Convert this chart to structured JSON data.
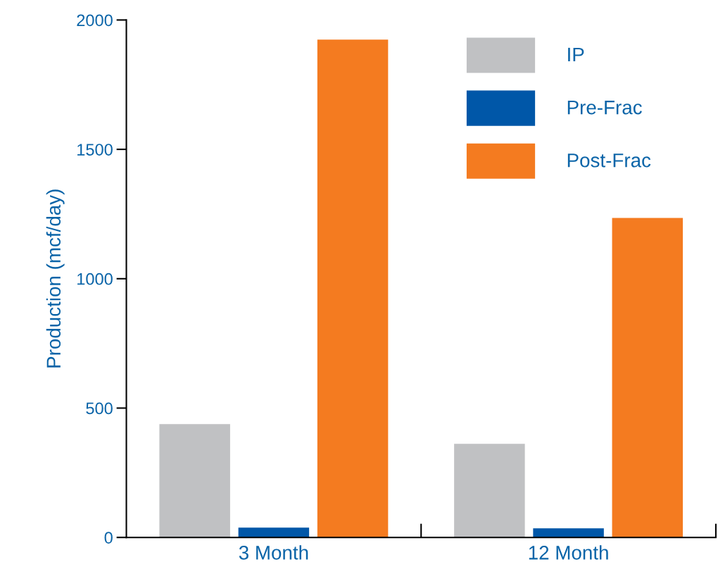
{
  "chart_data": {
    "type": "bar",
    "ylabel": "Production (mcf/day)",
    "categories": [
      "3 Month",
      "12 Month"
    ],
    "series": [
      {
        "name": "IP",
        "color": "#c0c1c3",
        "values": [
          438,
          362
        ]
      },
      {
        "name": "Pre-Frac",
        "color": "#0057a8",
        "values": [
          38,
          35
        ]
      },
      {
        "name": "Post-Frac",
        "color": "#f47b20",
        "values": [
          1924,
          1235
        ]
      }
    ],
    "ylim": [
      0,
      2000
    ],
    "yticks": [
      0,
      500,
      1000,
      1500,
      2000
    ],
    "grid": false,
    "legend": "top right"
  }
}
